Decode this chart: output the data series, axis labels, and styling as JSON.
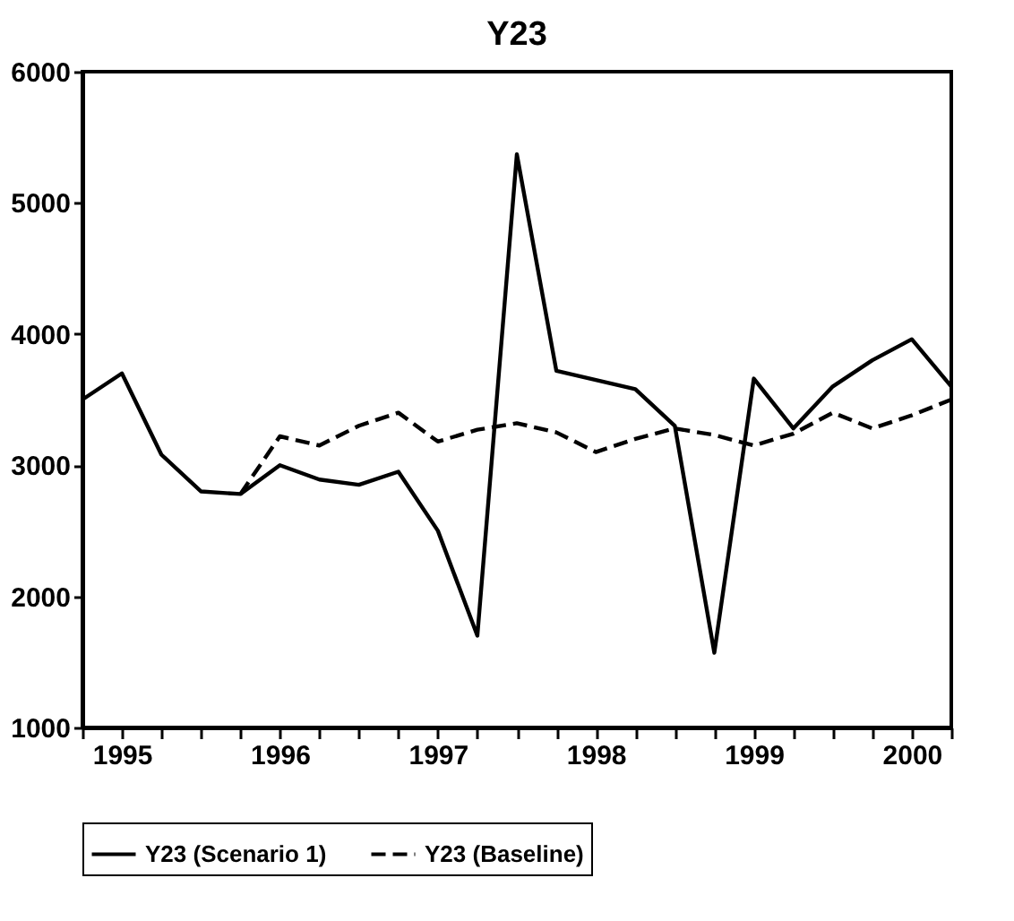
{
  "chart_data": {
    "type": "line",
    "title": "Y23",
    "xlim": [
      1994.75,
      2000.25
    ],
    "xticks": [
      {
        "value": 1994.75,
        "label": null
      },
      1995,
      {
        "value": 1995.25,
        "label": null
      },
      {
        "value": 1995.5,
        "label": null
      },
      {
        "value": 1995.75,
        "label": null
      },
      1996,
      {
        "value": 1996.25,
        "label": null
      },
      {
        "value": 1996.5,
        "label": null
      },
      {
        "value": 1996.75,
        "label": null
      },
      1997,
      {
        "value": 1997.25,
        "label": null
      },
      {
        "value": 1997.5,
        "label": null
      },
      {
        "value": 1997.75,
        "label": null
      },
      1998,
      {
        "value": 1998.25,
        "label": null
      },
      {
        "value": 1998.5,
        "label": null
      },
      {
        "value": 1998.75,
        "label": null
      },
      1999,
      {
        "value": 1999.25,
        "label": null
      },
      {
        "value": 1999.5,
        "label": null
      },
      {
        "value": 1999.75,
        "label": null
      },
      2000,
      {
        "value": 2000.25,
        "label": null
      }
    ],
    "ylim": [
      1000,
      6000
    ],
    "yticks": [
      1000,
      2000,
      3000,
      4000,
      5000,
      6000
    ],
    "grid": false,
    "legend": "bottom",
    "marker": "none",
    "series": [
      {
        "name": "Y23 (Scenario 1)",
        "color": "#000000",
        "line_style": "solid",
        "x": [
          1994.75,
          1995,
          1995.25,
          1995.5,
          1995.75,
          1996,
          1996.25,
          1996.5,
          1996.75,
          1997,
          1997.25,
          1997.5,
          1997.75,
          1998,
          1998.25,
          1998.5,
          1998.75,
          1999,
          1999.25,
          1999.5,
          1999.75,
          2000,
          2000.25
        ],
        "values": [
          3500,
          3700,
          3080,
          2800,
          2780,
          3000,
          2890,
          2850,
          2950,
          2500,
          1700,
          5370,
          3720,
          3650,
          3580,
          3300,
          1570,
          3660,
          3280,
          3600,
          3800,
          3960,
          3600
        ]
      },
      {
        "name": "Y23 (Baseline)",
        "color": "#000000",
        "line_style": "dashed",
        "x": [
          1995.75,
          1996,
          1996.25,
          1996.5,
          1996.75,
          1997,
          1997.25,
          1997.5,
          1997.75,
          1998,
          1998.25,
          1998.5,
          1998.75,
          1999,
          1999.25,
          1999.5,
          1999.75,
          2000,
          2000.25
        ],
        "values": [
          2780,
          3220,
          3150,
          3300,
          3400,
          3180,
          3270,
          3320,
          3250,
          3100,
          3200,
          3280,
          3230,
          3150,
          3240,
          3400,
          3280,
          3380,
          3500
        ]
      }
    ]
  }
}
